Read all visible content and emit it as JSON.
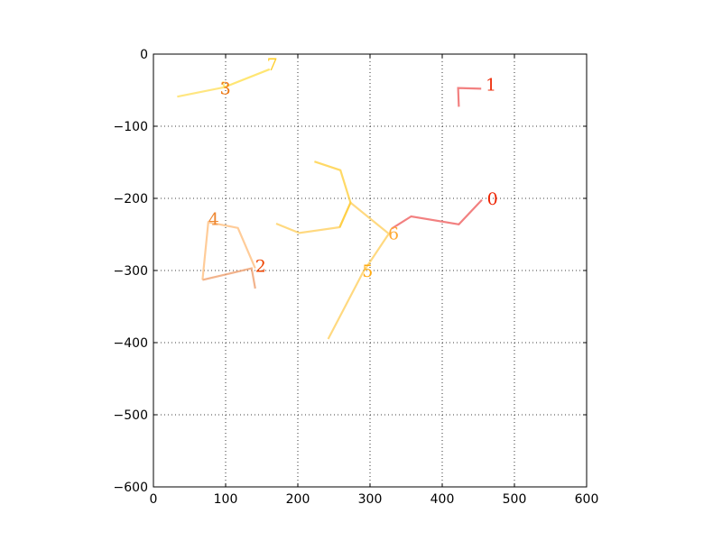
{
  "chart_data": {
    "type": "line",
    "title": "",
    "xlabel": "",
    "ylabel": "",
    "xlim": [
      0,
      600
    ],
    "ylim": [
      -600,
      0
    ],
    "xticks": [
      0,
      100,
      200,
      300,
      400,
      500,
      600
    ],
    "yticks": [
      0,
      -100,
      -200,
      -300,
      -400,
      -500,
      -600
    ],
    "xtick_labels": [
      "0",
      "100",
      "200",
      "300",
      "400",
      "500",
      "600"
    ],
    "ytick_labels": [
      "0",
      "−100",
      "−200",
      "−300",
      "−400",
      "−500",
      "−600"
    ],
    "grid": true,
    "series": [
      {
        "label": "0",
        "color": "#ee5555",
        "label_color": "#ee2200",
        "label_at": [
          462,
          -200
        ],
        "x": [
          330,
          357,
          423,
          455
        ],
        "y": [
          -242,
          -225,
          -236,
          -202
        ]
      },
      {
        "label": "1",
        "color": "#ee5555",
        "label_color": "#ee3311",
        "label_at": [
          460,
          -42
        ],
        "x": [
          423,
          422,
          454
        ],
        "y": [
          -73,
          -47,
          -48
        ]
      },
      {
        "label": "2",
        "color": "#ee9966",
        "label_color": "#ee4400",
        "label_at": [
          141,
          -293
        ],
        "x": [
          141,
          136,
          68
        ],
        "y": [
          -325,
          -297,
          -313
        ]
      },
      {
        "label": "3",
        "color": "#ffdd55",
        "label_color": "#ee7711",
        "label_at": [
          92,
          -47
        ],
        "x": [
          33,
          98,
          96
        ],
        "y": [
          -59,
          -46,
          -38
        ]
      },
      {
        "label": "4",
        "color": "#ffbb77",
        "label_color": "#ee8833",
        "label_at": [
          76,
          -228
        ],
        "x": [
          68,
          76,
          117,
          141
        ],
        "y": [
          -313,
          -233,
          -241,
          -297
        ]
      },
      {
        "label": "5",
        "color": "#ffcc55",
        "label_color": "#ffaa11",
        "label_at": [
          289,
          -300
        ],
        "x": [
          242,
          290,
          326,
          273,
          258,
          202,
          170
        ],
        "y": [
          -395,
          -303,
          -249,
          -206,
          -240,
          -248,
          -235
        ]
      },
      {
        "label": "6",
        "color": "#ffcc33",
        "label_color": "#ffaa33",
        "label_at": [
          325,
          -248
        ],
        "x": [
          258,
          273,
          259,
          223
        ],
        "y": [
          -240,
          -206,
          -161,
          -149
        ]
      },
      {
        "label": "7",
        "color": "#ffdd44",
        "label_color": "#ffcc22",
        "label_at": [
          157,
          -14
        ],
        "x": [
          98,
          161
        ],
        "y": [
          -46,
          -21
        ]
      }
    ]
  }
}
